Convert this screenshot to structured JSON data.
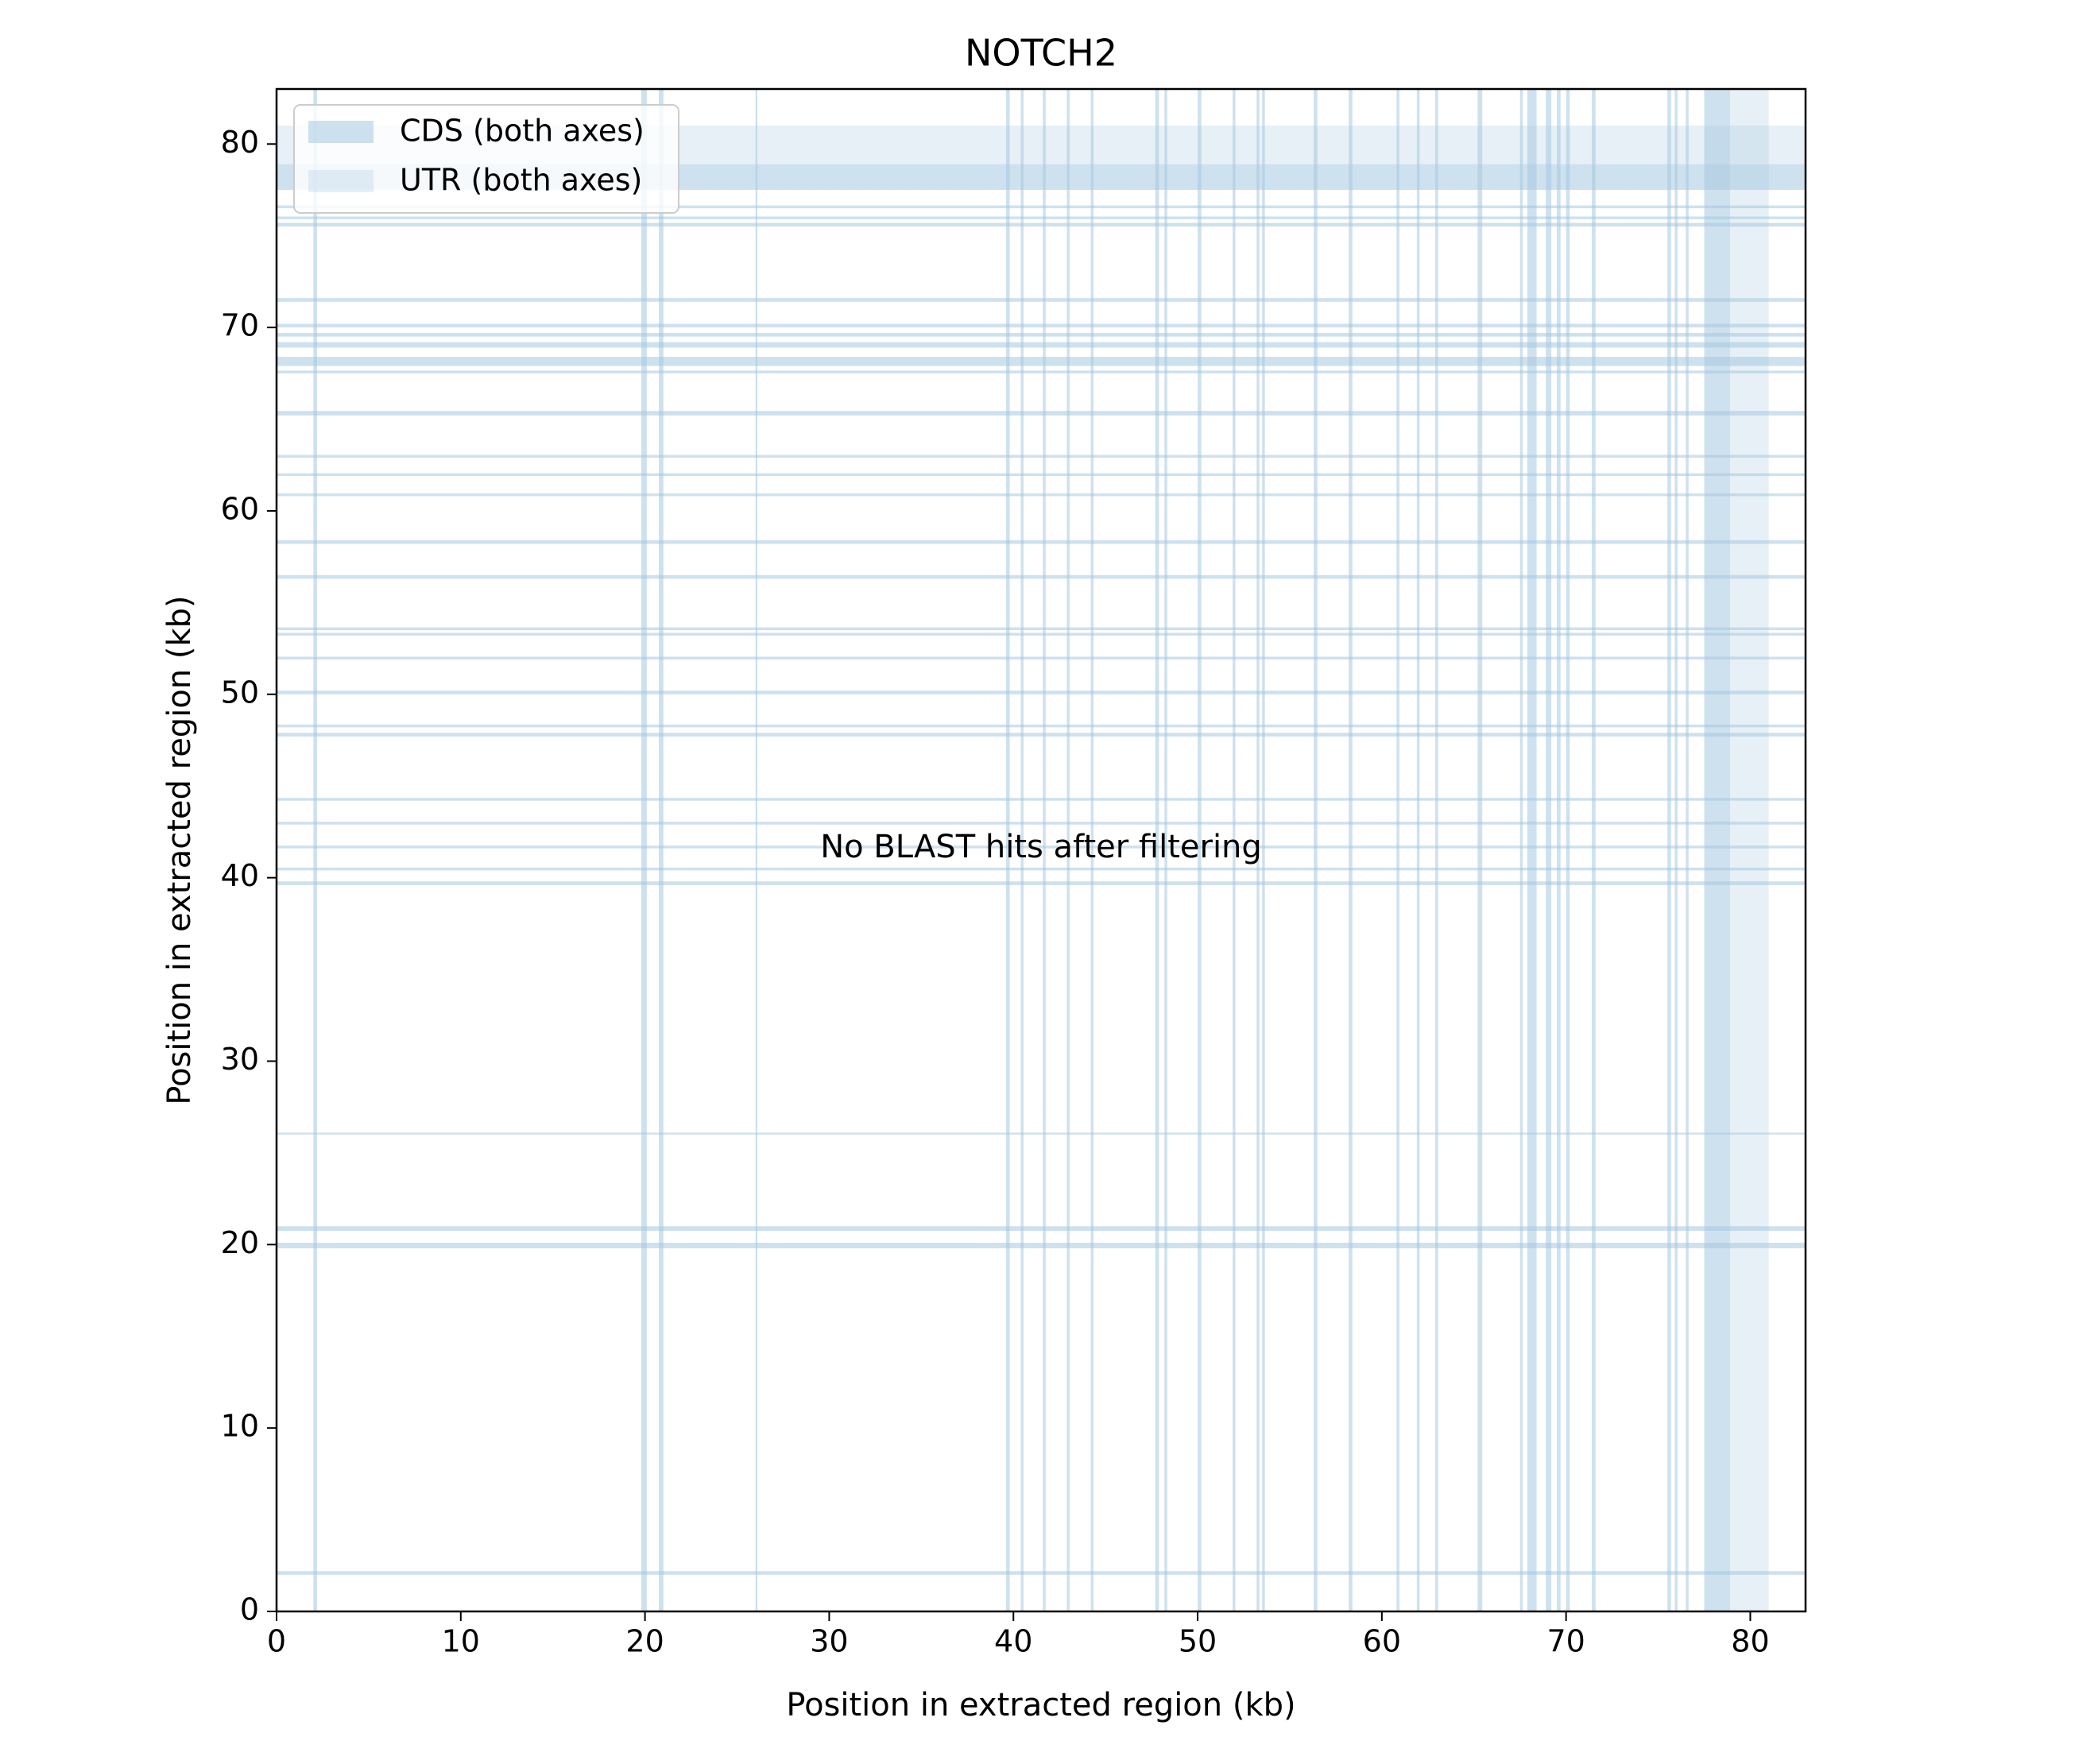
{
  "chart_data": {
    "type": "heatmap",
    "title": "NOTCH2",
    "xlabel": "Position in extracted region (kb)",
    "ylabel": "Position in extracted region (kb)",
    "xlim": [
      0,
      83
    ],
    "ylim": [
      0,
      83
    ],
    "xticks": [
      0,
      10,
      20,
      30,
      40,
      50,
      60,
      70,
      80
    ],
    "yticks": [
      0,
      10,
      20,
      30,
      40,
      50,
      60,
      70,
      80
    ],
    "grid": false,
    "legend": {
      "placement": "upper-left",
      "entries": [
        {
          "label": "CDS (both axes)",
          "color": "#a6c8e0",
          "alpha": 0.55
        },
        {
          "label": "UTR (both axes)",
          "color": "#a6c8e0",
          "alpha": 0.28
        }
      ]
    },
    "annotation": "No BLAST hits after filtering",
    "cds_intervals_kb": [
      [
        2.0,
        2.2
      ],
      [
        19.8,
        20.1
      ],
      [
        20.75,
        21.0
      ],
      [
        26.0,
        26.1
      ],
      [
        39.6,
        39.8
      ],
      [
        40.4,
        40.55
      ],
      [
        41.6,
        41.75
      ],
      [
        42.9,
        43.05
      ],
      [
        44.2,
        44.35
      ],
      [
        47.7,
        47.9
      ],
      [
        48.2,
        48.35
      ],
      [
        50.0,
        50.2
      ],
      [
        51.9,
        52.05
      ],
      [
        53.2,
        53.35
      ],
      [
        53.5,
        53.65
      ],
      [
        56.3,
        56.5
      ],
      [
        58.2,
        58.4
      ],
      [
        60.8,
        60.95
      ],
      [
        61.9,
        62.05
      ],
      [
        62.9,
        63.05
      ],
      [
        65.2,
        65.45
      ],
      [
        67.5,
        67.65
      ],
      [
        67.9,
        68.4
      ],
      [
        68.9,
        69.2
      ],
      [
        69.5,
        69.7
      ],
      [
        70.0,
        70.2
      ],
      [
        71.4,
        71.6
      ],
      [
        75.5,
        75.7
      ],
      [
        75.9,
        76.05
      ],
      [
        76.5,
        76.65
      ],
      [
        77.5,
        78.9
      ]
    ],
    "utr_intervals_kb": [
      [
        78.9,
        81.0
      ]
    ]
  },
  "colors": {
    "band": "#a6c8e0",
    "axis": "#000000",
    "background": "#ffffff"
  }
}
